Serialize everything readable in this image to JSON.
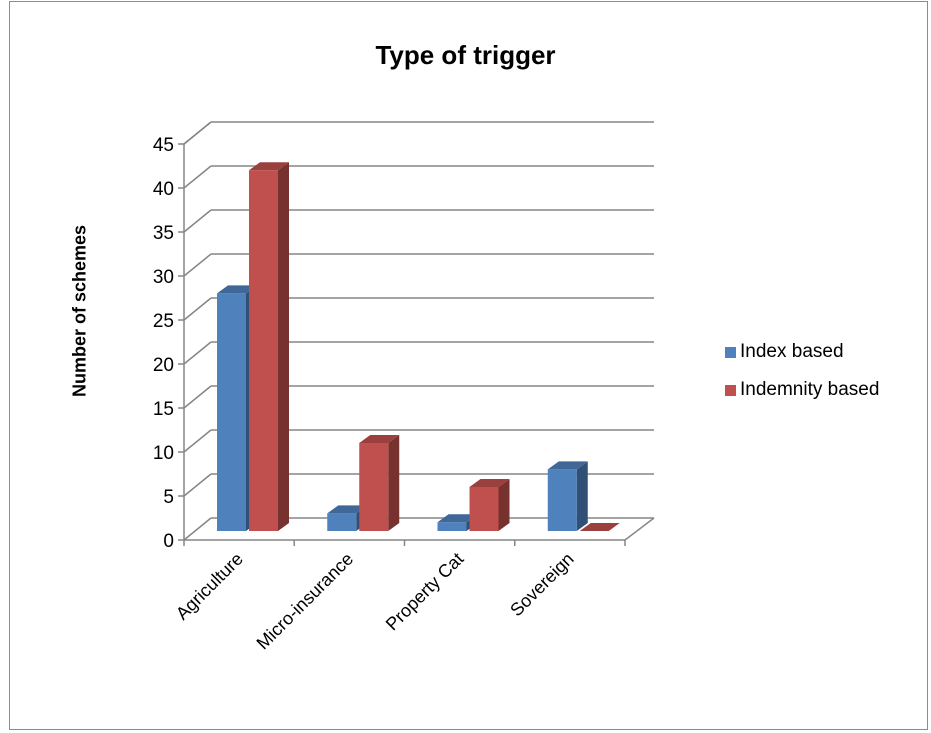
{
  "chart_data": {
    "type": "bar",
    "title": "Type of trigger",
    "xlabel": "",
    "ylabel": "Number of schemes",
    "categories": [
      "Agriculture",
      "Micro-insurance",
      "Property Cat",
      "Sovereign"
    ],
    "series": [
      {
        "name": "Index based",
        "values": [
          27,
          2,
          1,
          7
        ],
        "color": "#4f81bd"
      },
      {
        "name": "Indemnity based",
        "values": [
          41,
          10,
          5,
          0
        ],
        "color": "#c0504d"
      }
    ],
    "ylim": [
      0,
      45
    ],
    "yticks": [
      0,
      5,
      10,
      15,
      20,
      25,
      30,
      35,
      40,
      45
    ],
    "grid": true,
    "legend_position": "right",
    "style": "3d-clustered-column"
  }
}
